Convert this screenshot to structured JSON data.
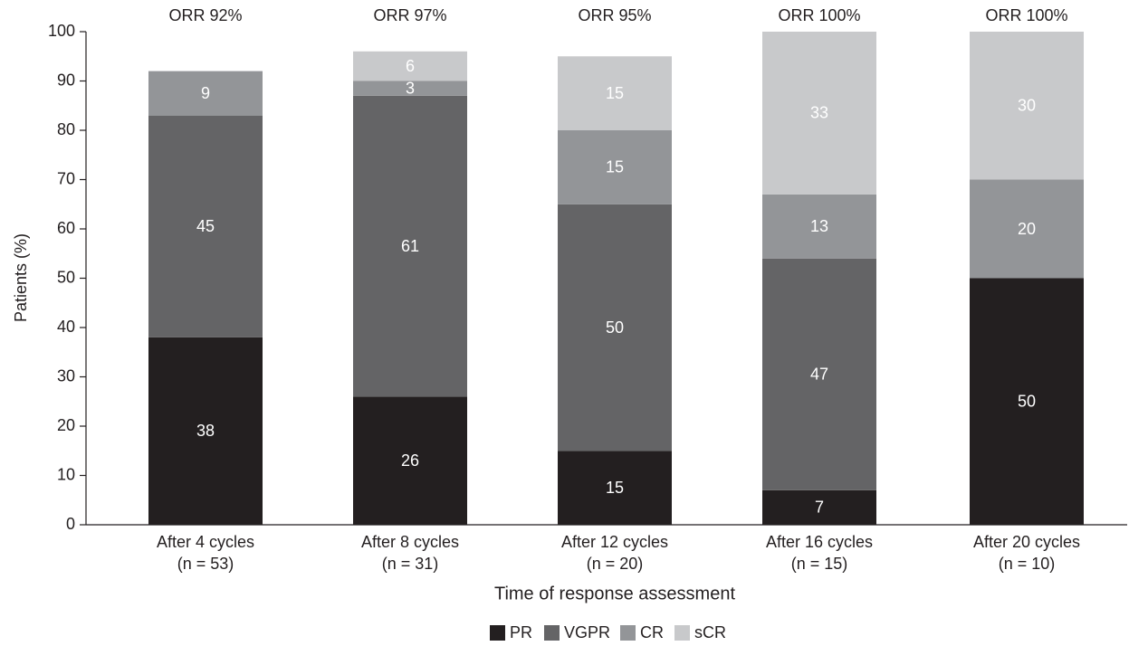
{
  "chart_data": {
    "type": "stacked_bar",
    "x_label": "Time of response assessment",
    "y_label": "Patients (%)",
    "categories": [
      [
        "After 4 cycles",
        "(n = 53)"
      ],
      [
        "After 8 cycles",
        "(n = 31)"
      ],
      [
        "After 12 cycles",
        "(n = 20)"
      ],
      [
        "After 16 cycles",
        "(n = 15)"
      ],
      [
        "After 20 cycles",
        "(n = 10)"
      ]
    ],
    "annotations": [
      "ORR 92%",
      "ORR 97%",
      "ORR 95%",
      "ORR 100%",
      "ORR 100%"
    ],
    "series": [
      {
        "name": "PR",
        "color": "#231f20",
        "values": [
          38,
          26,
          15,
          7,
          50
        ]
      },
      {
        "name": "VGPR",
        "color": "#646466",
        "values": [
          45,
          61,
          50,
          47,
          null
        ]
      },
      {
        "name": "CR",
        "color": "#939598",
        "values": [
          9,
          3,
          15,
          13,
          20
        ]
      },
      {
        "name": "sCR",
        "color": "#c8c9cb",
        "values": [
          null,
          6,
          15,
          33,
          30
        ]
      }
    ],
    "ylim": [
      0,
      100
    ],
    "yticks": [
      0,
      10,
      20,
      30,
      40,
      50,
      60,
      70,
      80,
      90,
      100
    ],
    "grid": false,
    "legend": "bottom"
  }
}
